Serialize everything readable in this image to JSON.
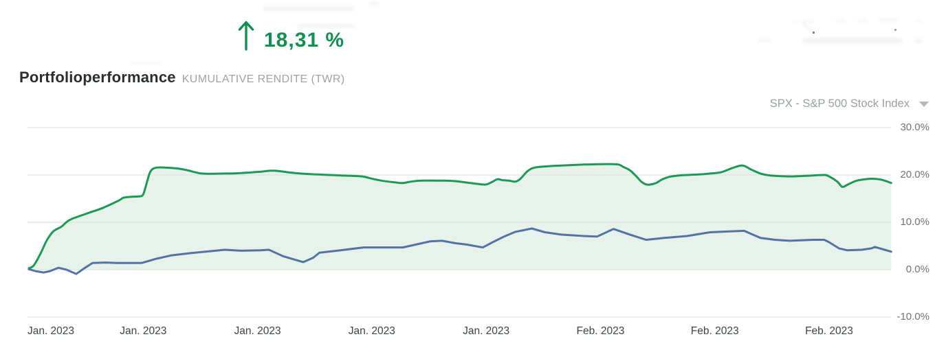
{
  "header": {
    "performance_value": "18,31 %",
    "trend_direction": "up",
    "title": "Portfolioperformance",
    "subtitle": "KUMULATIVE RENDITE (TWR)",
    "benchmark": {
      "value": "SPX - S&P 500 Stock Index",
      "icon": "chevron-down"
    }
  },
  "colors": {
    "kpi_green": "#0f9150",
    "portfolio_line": "#1b9a55",
    "portfolio_fill": "#e7f2ea",
    "benchmark_line": "#5273a3",
    "grid_line": "#e0e1e2",
    "title_text": "#2b2e30",
    "subtitle_text": "#a0a2a5",
    "selector_text": "#9aa0a6",
    "x_label_text": "#3c4347",
    "y_label_text": "#6f7479"
  },
  "chart_data": {
    "type": "area",
    "title": "Portfolioperformance — Kumulative Rendite (TWR)",
    "xlabel": "",
    "ylabel": "",
    "x_unit": "trading days (x = days since start, Jan 2023)",
    "y_unit": "%",
    "ylim": [
      -10,
      30
    ],
    "xlim": [
      0,
      52.8
    ],
    "grid": "horizontal",
    "legend_position": "none",
    "x_axis": {
      "ticks": [
        {
          "day": 0,
          "label": "Jan. 2023"
        },
        {
          "day": 7,
          "label": "Jan. 2023"
        },
        {
          "day": 14,
          "label": "Jan. 2023"
        },
        {
          "day": 21,
          "label": "Jan. 2023"
        },
        {
          "day": 28,
          "label": "Jan. 2023"
        },
        {
          "day": 35,
          "label": "Feb. 2023"
        },
        {
          "day": 42,
          "label": "Feb. 2023"
        },
        {
          "day": 49,
          "label": "Feb. 2023"
        }
      ]
    },
    "y_axis": {
      "ticks": [
        {
          "value": 30,
          "label": "30.0%"
        },
        {
          "value": 20,
          "label": "20.0%"
        },
        {
          "value": 10,
          "label": "10.0%"
        },
        {
          "value": 0,
          "label": "0.0%"
        },
        {
          "value": -10,
          "label": "-10.0%"
        }
      ]
    },
    "series": [
      {
        "name": "Portfolio (kumulative Rendite TWR)",
        "style": "smooth-area",
        "color": "#1b9a55",
        "fill_color": "#e7f2ea",
        "final_value_label": "18,31 %",
        "points": [
          [
            0,
            0.3
          ],
          [
            0.3,
            0.9
          ],
          [
            0.7,
            3.3
          ],
          [
            1.1,
            6.2
          ],
          [
            1.5,
            8.1
          ],
          [
            2.0,
            9.1
          ],
          [
            2.5,
            10.5
          ],
          [
            3.5,
            11.8
          ],
          [
            4.5,
            13.0
          ],
          [
            5.5,
            14.6
          ],
          [
            5.8,
            15.2
          ],
          [
            6.3,
            15.4
          ],
          [
            6.8,
            15.5
          ],
          [
            7.0,
            15.9
          ],
          [
            7.2,
            18.1
          ],
          [
            7.4,
            20.4
          ],
          [
            7.6,
            21.3
          ],
          [
            8.0,
            21.6
          ],
          [
            9.0,
            21.4
          ],
          [
            9.7,
            21.0
          ],
          [
            10.6,
            20.3
          ],
          [
            12.0,
            20.3
          ],
          [
            13.0,
            20.4
          ],
          [
            14.2,
            20.7
          ],
          [
            15.0,
            20.9
          ],
          [
            16.3,
            20.4
          ],
          [
            17.7,
            20.1
          ],
          [
            19.1,
            19.9
          ],
          [
            20.4,
            19.7
          ],
          [
            20.9,
            19.3
          ],
          [
            21.6,
            18.8
          ],
          [
            22.5,
            18.4
          ],
          [
            22.9,
            18.3
          ],
          [
            23.4,
            18.6
          ],
          [
            24.0,
            18.8
          ],
          [
            25.4,
            18.8
          ],
          [
            26.1,
            18.7
          ],
          [
            26.8,
            18.4
          ],
          [
            27.5,
            18.1
          ],
          [
            28.0,
            18.0
          ],
          [
            28.4,
            18.6
          ],
          [
            28.7,
            19.1
          ],
          [
            29.0,
            18.9
          ],
          [
            29.4,
            18.8
          ],
          [
            29.8,
            18.6
          ],
          [
            30.1,
            19.2
          ],
          [
            30.5,
            20.7
          ],
          [
            30.9,
            21.5
          ],
          [
            31.6,
            21.8
          ],
          [
            32.6,
            22.0
          ],
          [
            34.0,
            22.2
          ],
          [
            35.4,
            22.3
          ],
          [
            36.1,
            22.2
          ],
          [
            36.4,
            21.7
          ],
          [
            36.8,
            21.0
          ],
          [
            37.2,
            19.7
          ],
          [
            37.5,
            18.6
          ],
          [
            37.8,
            18.0
          ],
          [
            38.1,
            18.0
          ],
          [
            38.4,
            18.3
          ],
          [
            38.8,
            19.1
          ],
          [
            39.2,
            19.6
          ],
          [
            39.8,
            19.9
          ],
          [
            40.3,
            20.0
          ],
          [
            41.0,
            20.1
          ],
          [
            41.7,
            20.3
          ],
          [
            42.4,
            20.6
          ],
          [
            43.1,
            21.5
          ],
          [
            43.7,
            22.0
          ],
          [
            44.2,
            21.2
          ],
          [
            44.8,
            20.3
          ],
          [
            45.4,
            19.9
          ],
          [
            46.6,
            19.7
          ],
          [
            48.0,
            19.9
          ],
          [
            48.7,
            20.0
          ],
          [
            49.0,
            19.7
          ],
          [
            49.5,
            18.6
          ],
          [
            49.8,
            17.5
          ],
          [
            50.1,
            17.9
          ],
          [
            50.6,
            18.7
          ],
          [
            51.0,
            19.0
          ],
          [
            51.6,
            19.2
          ],
          [
            52.2,
            19.0
          ],
          [
            52.8,
            18.31
          ]
        ]
      },
      {
        "name": "SPX - S&P 500 Stock Index",
        "style": "line",
        "color": "#5273a3",
        "points": [
          [
            0,
            0.1
          ],
          [
            0.4,
            -0.3
          ],
          [
            0.9,
            -0.6
          ],
          [
            1.3,
            -0.3
          ],
          [
            1.8,
            0.4
          ],
          [
            2.3,
            0.0
          ],
          [
            2.9,
            -0.9
          ],
          [
            3.4,
            0.3
          ],
          [
            3.9,
            1.4
          ],
          [
            4.7,
            1.5
          ],
          [
            5.4,
            1.4
          ],
          [
            6.9,
            1.4
          ],
          [
            7.8,
            2.3
          ],
          [
            8.7,
            3.0
          ],
          [
            9.9,
            3.5
          ],
          [
            11.1,
            3.9
          ],
          [
            12.0,
            4.2
          ],
          [
            13.0,
            4.0
          ],
          [
            14.2,
            4.1
          ],
          [
            14.7,
            4.2
          ],
          [
            15.6,
            2.8
          ],
          [
            16.8,
            1.6
          ],
          [
            17.4,
            2.5
          ],
          [
            17.8,
            3.6
          ],
          [
            19.1,
            4.1
          ],
          [
            20.5,
            4.7
          ],
          [
            21.5,
            4.7
          ],
          [
            22.9,
            4.7
          ],
          [
            23.7,
            5.3
          ],
          [
            24.6,
            6.0
          ],
          [
            25.3,
            6.1
          ],
          [
            26.1,
            5.6
          ],
          [
            26.8,
            5.3
          ],
          [
            27.8,
            4.7
          ],
          [
            28.4,
            5.8
          ],
          [
            29.1,
            7.0
          ],
          [
            29.8,
            8.0
          ],
          [
            30.8,
            8.7
          ],
          [
            31.6,
            7.9
          ],
          [
            32.6,
            7.4
          ],
          [
            34.0,
            7.1
          ],
          [
            34.8,
            7.0
          ],
          [
            35.8,
            8.6
          ],
          [
            36.8,
            7.4
          ],
          [
            37.8,
            6.3
          ],
          [
            38.9,
            6.7
          ],
          [
            40.3,
            7.1
          ],
          [
            41.7,
            7.9
          ],
          [
            42.4,
            8.0
          ],
          [
            43.8,
            8.2
          ],
          [
            44.2,
            7.6
          ],
          [
            44.8,
            6.7
          ],
          [
            45.7,
            6.3
          ],
          [
            46.6,
            6.1
          ],
          [
            48.0,
            6.3
          ],
          [
            48.7,
            6.3
          ],
          [
            49.0,
            5.8
          ],
          [
            49.6,
            4.5
          ],
          [
            50.1,
            4.1
          ],
          [
            51.0,
            4.2
          ],
          [
            51.6,
            4.5
          ],
          [
            51.8,
            4.8
          ],
          [
            52.4,
            4.2
          ],
          [
            52.8,
            3.8
          ]
        ]
      }
    ]
  }
}
